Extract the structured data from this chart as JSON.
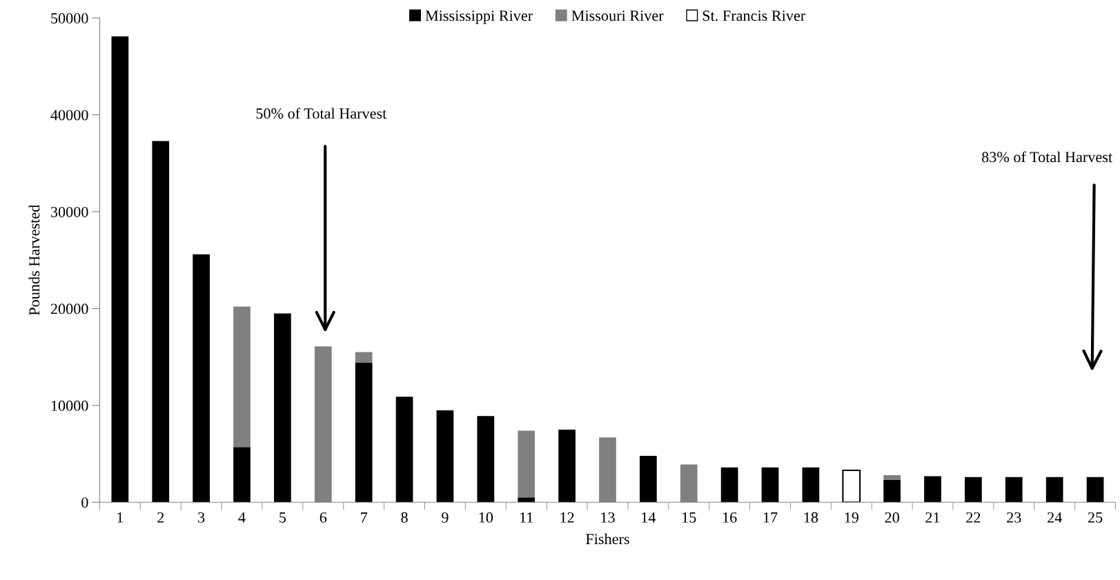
{
  "chart_data": {
    "type": "bar",
    "stacked": true,
    "xlabel": "Fishers",
    "ylabel": "Pounds Harvested",
    "categories": [
      "1",
      "2",
      "3",
      "4",
      "5",
      "6",
      "7",
      "8",
      "9",
      "10",
      "11",
      "12",
      "13",
      "14",
      "15",
      "16",
      "17",
      "18",
      "19",
      "20",
      "21",
      "22",
      "23",
      "24",
      "25"
    ],
    "series": [
      {
        "name": "Mississippi River",
        "color": "#000000",
        "values": [
          48100,
          37300,
          25600,
          5700,
          19500,
          null,
          14400,
          10900,
          9500,
          8900,
          500,
          7500,
          null,
          4800,
          null,
          3600,
          3600,
          3600,
          null,
          2300,
          2700,
          2600,
          2600,
          2600,
          2600
        ]
      },
      {
        "name": "Missouri River",
        "color": "#808080",
        "values": [
          null,
          null,
          null,
          14500,
          null,
          16100,
          1100,
          null,
          null,
          null,
          6900,
          null,
          6700,
          null,
          3900,
          null,
          null,
          null,
          null,
          500,
          null,
          null,
          null,
          null,
          null
        ]
      },
      {
        "name": "St. Francis River",
        "color": "#ffffff",
        "values": [
          null,
          null,
          null,
          null,
          null,
          null,
          null,
          null,
          null,
          null,
          null,
          null,
          null,
          null,
          null,
          null,
          null,
          null,
          3300,
          null,
          null,
          null,
          null,
          null,
          null
        ]
      }
    ],
    "ylim": [
      0,
      50000
    ],
    "yticks": [
      0,
      10000,
      20000,
      30000,
      40000,
      50000
    ],
    "grid": false,
    "legend": "top",
    "annotations": [
      "50% of Total Harvest",
      "83% of Total Harvest"
    ]
  }
}
